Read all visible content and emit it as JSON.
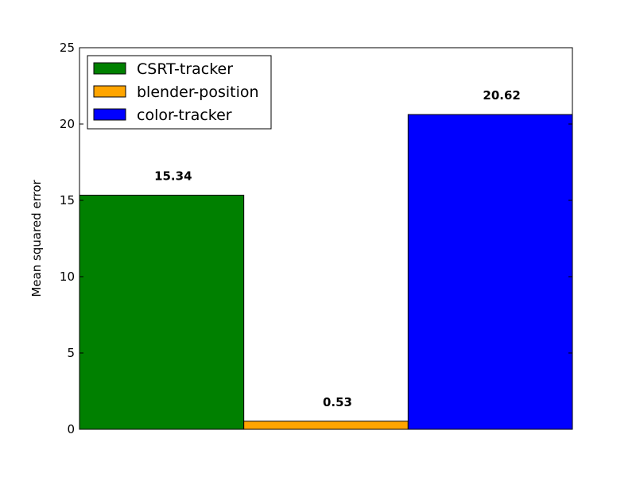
{
  "chart_data": {
    "type": "bar",
    "title": "",
    "xlabel": "",
    "ylabel": "Mean squared error",
    "ylim": [
      0,
      25
    ],
    "yticks": [
      0,
      5,
      10,
      15,
      20,
      25
    ],
    "grid": false,
    "legend_position": "top-left",
    "series": [
      {
        "name": "CSRT-tracker",
        "value": 15.34,
        "label": "15.34",
        "color": "#008000"
      },
      {
        "name": "blender-position",
        "value": 0.53,
        "label": "0.53",
        "color": "#ffa500"
      },
      {
        "name": "color-tracker",
        "value": 20.62,
        "label": "20.62",
        "color": "#0000ff"
      }
    ]
  }
}
